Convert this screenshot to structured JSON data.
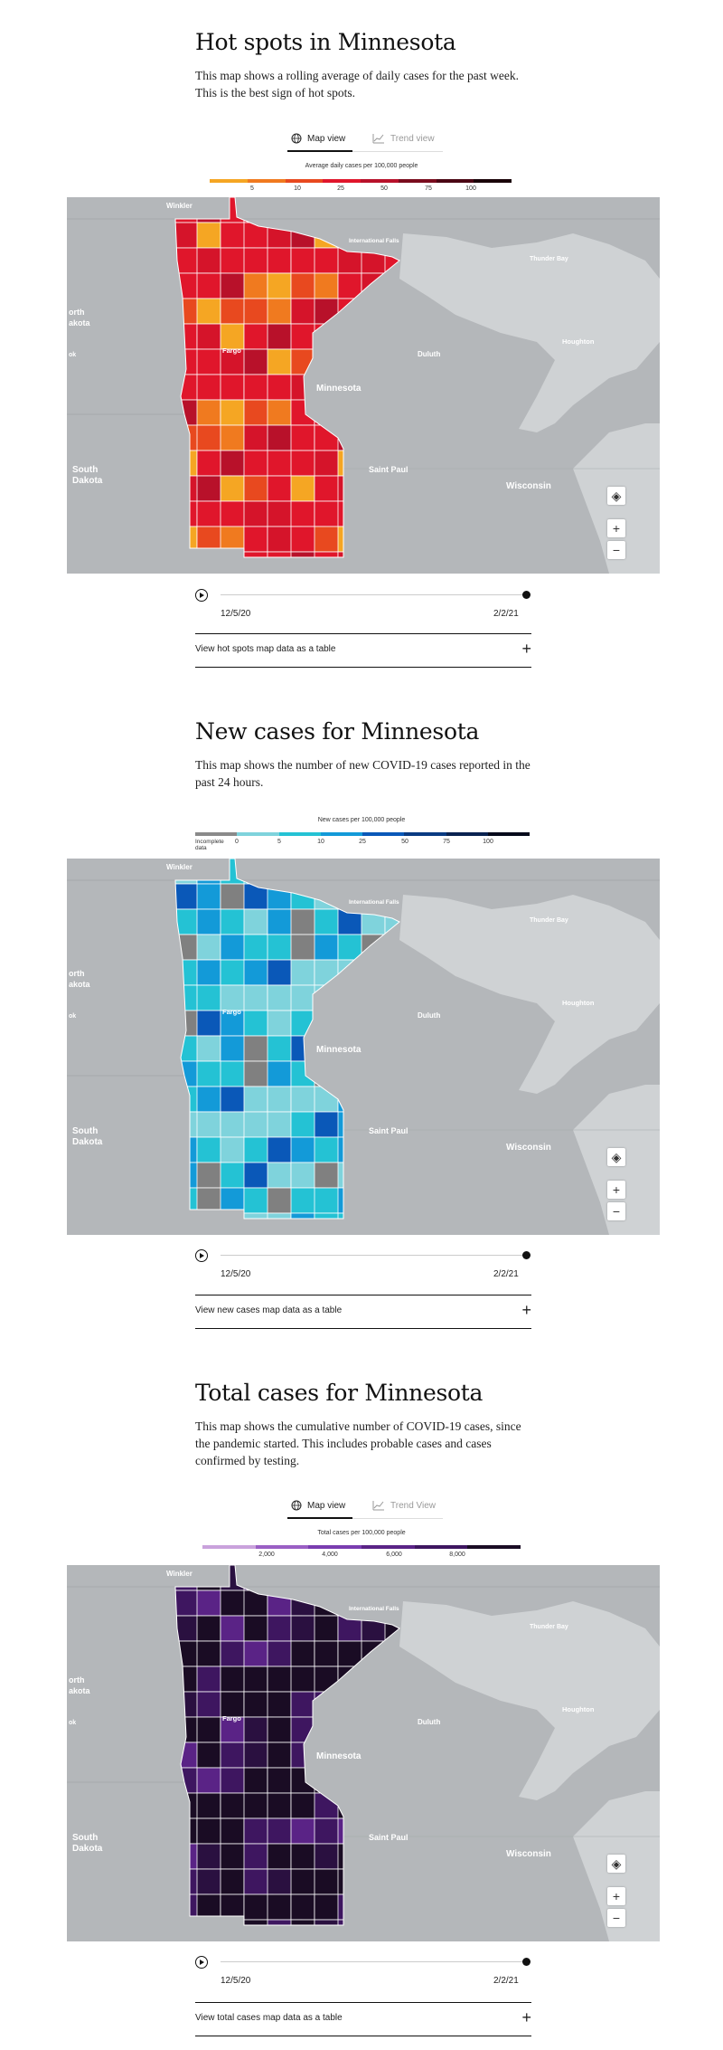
{
  "map_labels": {
    "winkler": "Winkler",
    "intl_falls": "International Falls",
    "thunder_bay": "Thunder Bay",
    "north_dakota_1": "orth",
    "north_dakota_2": "akota",
    "grand_forks": "ok",
    "fargo": "Fargo",
    "duluth": "Duluth",
    "houghton": "Houghton",
    "minnesota": "Minnesota",
    "south": "South",
    "dakota": "Dakota",
    "saint_paul": "Saint Paul",
    "wisconsin": "Wisconsin"
  },
  "tabs": {
    "map_view": "Map view",
    "trend_view_1": "Trend view",
    "trend_view_3": "Trend View"
  },
  "timeline": {
    "start": "12/5/20",
    "end": "2/2/21"
  },
  "sections": [
    {
      "title": "Hot spots in Minnesota",
      "description": "This map shows a rolling average of daily cases for the past week. This is the best sign of hot spots.",
      "legend_title": "Average daily cases per 100,000 people",
      "legend_ticks": [
        "5",
        "10",
        "25",
        "50",
        "75",
        "100"
      ],
      "legend_colors": [
        "#f5a623",
        "#f07a1f",
        "#e8491f",
        "#e0162b",
        "#b8112a",
        "#7a0c1e",
        "#4a0614",
        "#1a0208"
      ],
      "table_link": "View hot spots map data as a table",
      "palette": [
        "#f07a1f",
        "#e8491f",
        "#e0162b",
        "#e0162b",
        "#e0162b",
        "#b8112a",
        "#f5a623",
        "#e0162b",
        "#d5142a"
      ]
    },
    {
      "title": "New cases for Minnesota",
      "description": "This map shows the number of new COVID-19 cases reported in the past 24 hours.",
      "legend_title": "New cases per 100,000 people",
      "legend_incomplete": "Incomplete data",
      "legend_ticks": [
        "0",
        "5",
        "10",
        "25",
        "50",
        "75",
        "100"
      ],
      "legend_colors": [
        "#8a8a8a",
        "#7fd3dc",
        "#24c2d4",
        "#139ad8",
        "#0a58b8",
        "#0a3a82",
        "#0a2250",
        "#050a1a"
      ],
      "table_link": "View new cases map data as a table",
      "palette": [
        "#7fd3dc",
        "#7fd3dc",
        "#24c2d4",
        "#139ad8",
        "#808080",
        "#0a58b8",
        "#7fd3dc",
        "#139ad8",
        "#24c2d4"
      ]
    },
    {
      "title": "Total cases for Minnesota",
      "description": "This map shows the cumulative number of COVID-19 cases, since the pandemic started. This includes probable cases and cases confirmed by testing.",
      "legend_title": "Total cases per 100,000 people",
      "legend_ticks": [
        "2,000",
        "4,000",
        "6,000",
        "8,000"
      ],
      "legend_colors": [
        "#c9a2dc",
        "#9a5fc4",
        "#7a3db0",
        "#5a2386",
        "#3e1660",
        "#1a0c24"
      ],
      "table_link": "View total cases map data as a table",
      "palette": [
        "#1a0c24",
        "#1a0c24",
        "#3e1660",
        "#1a0c24",
        "#2a1040",
        "#3e1660",
        "#1a0c24",
        "#5a2386",
        "#1a0c24"
      ]
    }
  ]
}
